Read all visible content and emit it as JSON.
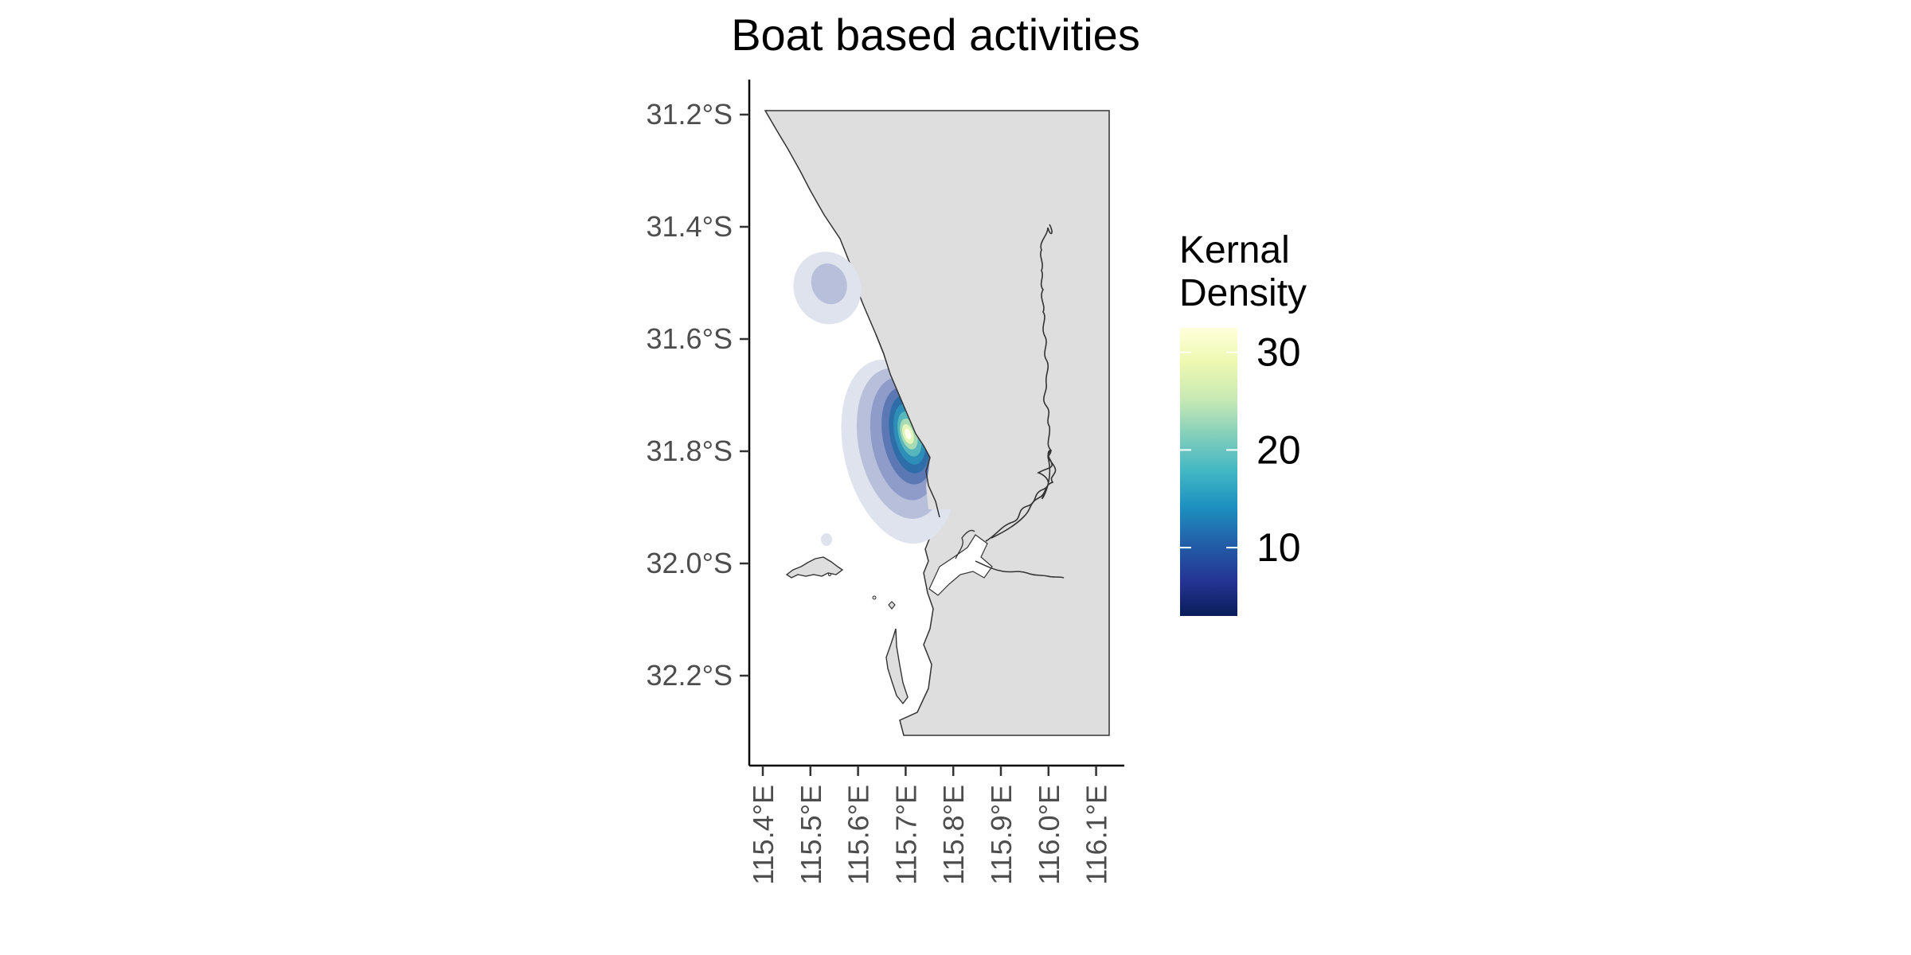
{
  "chart_data": {
    "type": "map",
    "title": "Boat based activities",
    "x_axis": {
      "ticks": [
        115.4,
        115.5,
        115.6,
        115.7,
        115.8,
        115.9,
        116.0,
        116.1
      ],
      "tick_labels": [
        "115.4°E",
        "115.5°E",
        "115.6°E",
        "115.7°E",
        "115.8°E",
        "115.9°E",
        "116.0°E",
        "116.1°E"
      ],
      "range": [
        115.37,
        116.16
      ]
    },
    "y_axis": {
      "ticks": [
        -31.2,
        -31.4,
        -31.6,
        -31.8,
        -32.0,
        -32.2
      ],
      "tick_labels": [
        "31.2°S",
        "31.4°S",
        "31.6°S",
        "31.8°S",
        "32.0°S",
        "32.2°S"
      ],
      "range": [
        -32.35,
        -31.145
      ]
    },
    "legend": {
      "title_lines": [
        "Kernal",
        "Density"
      ],
      "ticks": [
        30,
        20,
        10
      ],
      "tick_labels": [
        "30",
        "20",
        "10"
      ],
      "range": [
        3,
        32.5
      ],
      "placement": "right",
      "colors": [
        "#081d58",
        "#253494",
        "#225ea8",
        "#1d91c0",
        "#41b6c4",
        "#7fcdbb",
        "#c7e9b4",
        "#edf8b1",
        "#ffffd9"
      ]
    },
    "density_hotspots": [
      {
        "lon": 115.695,
        "lat": -31.775,
        "peak": 32
      },
      {
        "lon": 115.535,
        "lat": -31.5,
        "peak": 4
      }
    ],
    "land_color": "#dedede",
    "coast_color": "#333333",
    "grid": false
  }
}
